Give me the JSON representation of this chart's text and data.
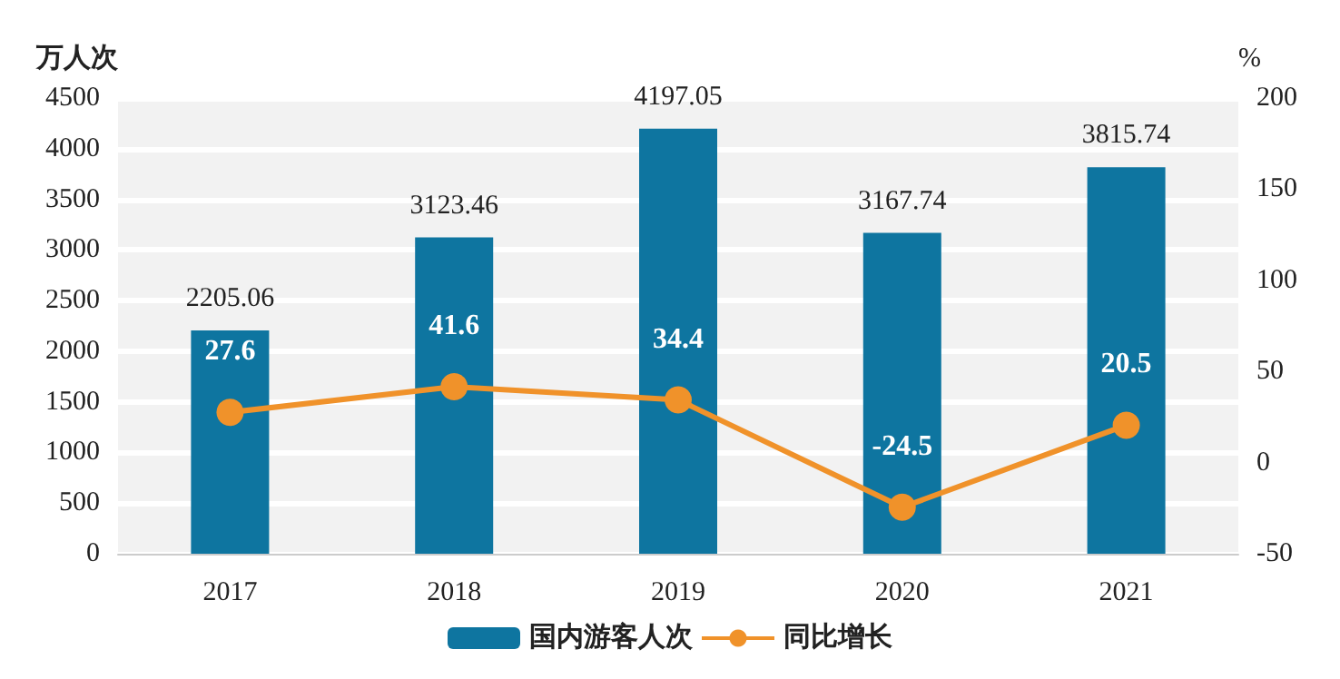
{
  "chart_data": {
    "type": "bar",
    "ylabel": "万人次",
    "y2label": "%",
    "categories": [
      "2017",
      "2018",
      "2019",
      "2020",
      "2021"
    ],
    "series": [
      {
        "name": "国内游客人次",
        "color": "#0e75a0",
        "values": [
          2205.06,
          3123.46,
          4197.05,
          3167.74,
          3815.74
        ]
      },
      {
        "name": "同比增长",
        "type": "line",
        "axis": "y2",
        "color": "#f0922a",
        "values": [
          27.6,
          41.6,
          34.4,
          -24.5,
          20.5
        ]
      }
    ],
    "ylim": [
      0,
      4500
    ],
    "yticks": [
      0,
      500,
      1000,
      1500,
      2000,
      2500,
      3000,
      3500,
      4000,
      4500
    ],
    "y2lim": [
      -50,
      200
    ],
    "y2ticks": [
      -50,
      0,
      50,
      100,
      150,
      200
    ],
    "grid": "y",
    "legend": "bottom",
    "marker": "circle",
    "line_style": "solid",
    "data_labels": true
  }
}
